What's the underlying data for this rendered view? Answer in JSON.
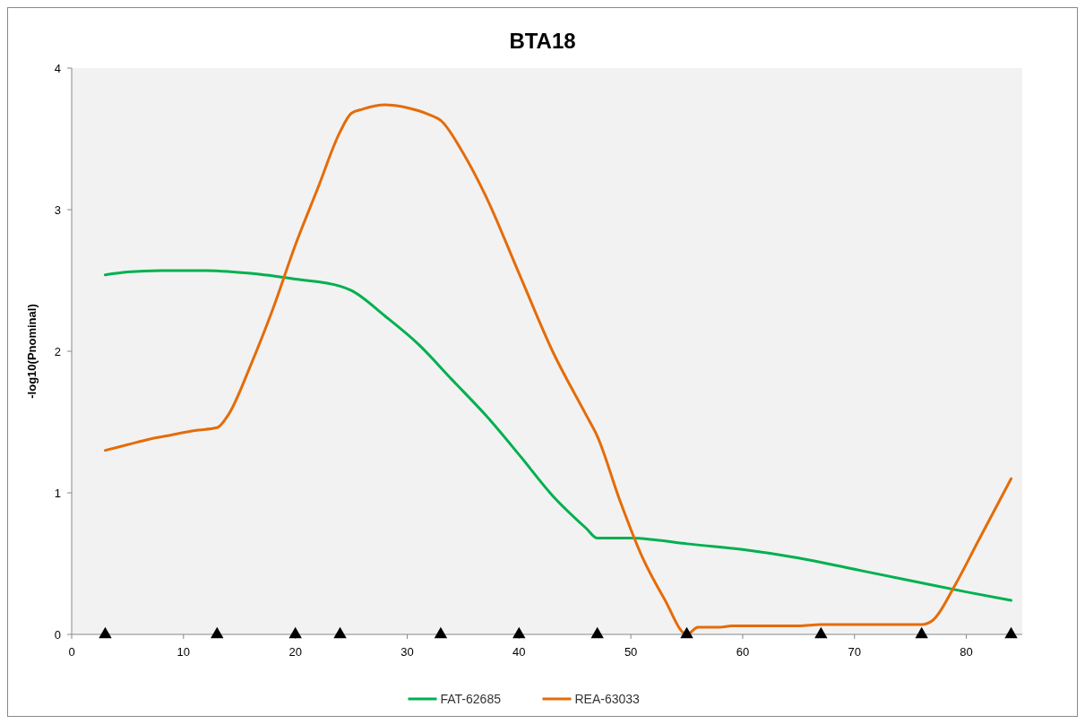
{
  "chart_data": {
    "type": "line",
    "title": "BTA18",
    "ylabel": "-log10(Pnominal)",
    "xlim": [
      0,
      85
    ],
    "xticks": [
      0,
      10,
      20,
      30,
      40,
      50,
      60,
      70,
      80
    ],
    "ylim": [
      0,
      4
    ],
    "yticks": [
      0,
      1,
      2,
      3,
      4
    ],
    "grid": false,
    "legend": "bottom",
    "marker": "none",
    "line_style": "solid",
    "series": [
      {
        "name": "FAT-62685",
        "color": "#00b050",
        "x": [
          3,
          5,
          8,
          12,
          16,
          20,
          24,
          25,
          28,
          31,
          34,
          37,
          40,
          43,
          46,
          47,
          48,
          50,
          52,
          55,
          60,
          65,
          70,
          75,
          80,
          84
        ],
        "values": [
          2.54,
          2.56,
          2.57,
          2.57,
          2.55,
          2.51,
          2.46,
          2.43,
          2.25,
          2.05,
          1.8,
          1.55,
          1.27,
          0.98,
          0.75,
          0.68,
          0.68,
          0.68,
          0.67,
          0.64,
          0.6,
          0.54,
          0.46,
          0.38,
          0.3,
          0.24
        ]
      },
      {
        "name": "REA-63033",
        "color": "#e46c0a",
        "x": [
          3,
          5,
          7,
          9,
          11,
          13,
          14,
          16,
          18,
          20,
          22,
          24,
          25,
          26,
          28,
          30,
          32,
          33,
          35,
          37,
          40,
          43,
          46,
          47,
          49,
          51,
          53,
          55,
          56,
          58,
          59,
          65,
          67,
          76,
          77,
          79,
          81,
          84
        ],
        "values": [
          1.3,
          1.34,
          1.38,
          1.41,
          1.44,
          1.46,
          1.55,
          1.9,
          2.3,
          2.75,
          3.15,
          3.55,
          3.68,
          3.71,
          3.74,
          3.72,
          3.67,
          3.63,
          3.4,
          3.1,
          2.55,
          2.0,
          1.55,
          1.4,
          0.95,
          0.55,
          0.25,
          0.0,
          0.05,
          0.05,
          0.06,
          0.06,
          0.07,
          0.07,
          0.1,
          0.35,
          0.65,
          1.1
        ]
      },
      {
        "type": "scatter",
        "marker": "triangle",
        "color": "#000000",
        "x": [
          3,
          13,
          20,
          24,
          33,
          40,
          47,
          55,
          67,
          76,
          84
        ],
        "values": [
          0,
          0,
          0,
          0,
          0,
          0,
          0,
          0,
          0,
          0,
          0
        ]
      }
    ]
  }
}
